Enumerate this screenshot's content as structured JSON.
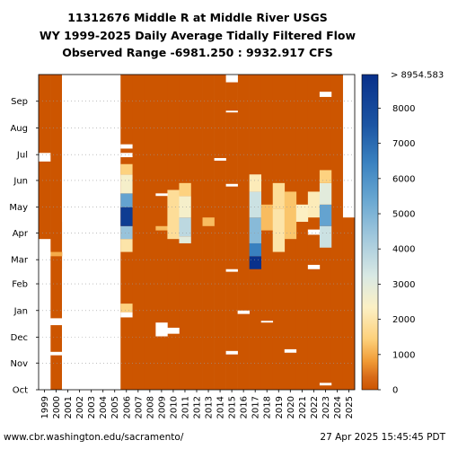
{
  "chart_data": {
    "type": "heatmap",
    "title_lines": [
      "11312676 Middle R at Middle River USGS",
      "WY 1999-2025 Daily Average Tidally Filtered Flow",
      "Observed Range -6981.250 : 9932.917 CFS"
    ],
    "x_categories": [
      "1999",
      "2000",
      "2001",
      "2002",
      "2003",
      "2004",
      "2005",
      "2006",
      "2007",
      "2008",
      "2009",
      "2010",
      "2011",
      "2012",
      "2013",
      "2014",
      "2015",
      "2016",
      "2017",
      "2018",
      "2019",
      "2020",
      "2021",
      "2022",
      "2023",
      "2024",
      "2025"
    ],
    "y_months": [
      "Oct",
      "Nov",
      "Dec",
      "Jan",
      "Feb",
      "Mar",
      "Apr",
      "May",
      "Jun",
      "Jul",
      "Aug",
      "Sep"
    ],
    "colorbar": {
      "range": [
        0,
        8954.583
      ],
      "ticks": [
        0,
        1000,
        2000,
        3000,
        4000,
        5000,
        6000,
        7000,
        8000
      ],
      "top_label": "> 8954.583"
    },
    "base_value_cfs": 0,
    "missing_columns": [
      "2001",
      "2002",
      "2003",
      "2004",
      "2005"
    ],
    "missing_ranges": [
      {
        "wy": "1999",
        "from_day": 0,
        "to_day": 175
      },
      {
        "wy": "1999",
        "from_day": 265,
        "to_day": 275
      },
      {
        "wy": "2000",
        "from_day": 40,
        "to_day": 44
      },
      {
        "wy": "2000",
        "from_day": 75,
        "to_day": 83
      },
      {
        "wy": "2001",
        "from_day": 0,
        "to_day": 140
      },
      {
        "wy": "2001",
        "from_day": 195,
        "to_day": 366
      },
      {
        "wy": "2006",
        "from_day": 84,
        "to_day": 90
      },
      {
        "wy": "2006",
        "from_day": 270,
        "to_day": 275
      },
      {
        "wy": "2006",
        "from_day": 280,
        "to_day": 285
      },
      {
        "wy": "2009",
        "from_day": 62,
        "to_day": 78
      },
      {
        "wy": "2009",
        "from_day": 225,
        "to_day": 228
      },
      {
        "wy": "2010",
        "from_day": 65,
        "to_day": 72
      },
      {
        "wy": "2014",
        "from_day": 266,
        "to_day": 269
      },
      {
        "wy": "2015",
        "from_day": 41,
        "to_day": 45
      },
      {
        "wy": "2015",
        "from_day": 137,
        "to_day": 140
      },
      {
        "wy": "2015",
        "from_day": 236,
        "to_day": 239
      },
      {
        "wy": "2015",
        "from_day": 322,
        "to_day": 324
      },
      {
        "wy": "2015",
        "from_day": 357,
        "to_day": 366
      },
      {
        "wy": "2016",
        "from_day": 88,
        "to_day": 92
      },
      {
        "wy": "2018",
        "from_day": 78,
        "to_day": 80
      },
      {
        "wy": "2020",
        "from_day": 43,
        "to_day": 47
      },
      {
        "wy": "2022",
        "from_day": 140,
        "to_day": 145
      },
      {
        "wy": "2022",
        "from_day": 180,
        "to_day": 186
      },
      {
        "wy": "2023",
        "from_day": 5,
        "to_day": 8
      },
      {
        "wy": "2023",
        "from_day": 340,
        "to_day": 346
      },
      {
        "wy": "2025",
        "from_day": 200,
        "to_day": 366
      }
    ],
    "flow_events": [
      {
        "wy": "2000",
        "from_day": 155,
        "to_day": 160,
        "value": 1000
      },
      {
        "wy": "2006",
        "from_day": 90,
        "to_day": 100,
        "value": 1500
      },
      {
        "wy": "2006",
        "from_day": 160,
        "to_day": 175,
        "value": 2000
      },
      {
        "wy": "2006",
        "from_day": 175,
        "to_day": 190,
        "value": 4500
      },
      {
        "wy": "2006",
        "from_day": 190,
        "to_day": 212,
        "value": 8500
      },
      {
        "wy": "2006",
        "from_day": 212,
        "to_day": 228,
        "value": 5500
      },
      {
        "wy": "2006",
        "from_day": 228,
        "to_day": 250,
        "value": 2500
      },
      {
        "wy": "2006",
        "from_day": 250,
        "to_day": 262,
        "value": 1500
      },
      {
        "wy": "2009",
        "from_day": 185,
        "to_day": 190,
        "value": 1200
      },
      {
        "wy": "2010",
        "from_day": 175,
        "to_day": 232,
        "value": 1800
      },
      {
        "wy": "2011",
        "from_day": 170,
        "to_day": 178,
        "value": 3000
      },
      {
        "wy": "2011",
        "from_day": 178,
        "to_day": 200,
        "value": 3800
      },
      {
        "wy": "2011",
        "from_day": 200,
        "to_day": 225,
        "value": 2500
      },
      {
        "wy": "2011",
        "from_day": 225,
        "to_day": 240,
        "value": 1500
      },
      {
        "wy": "2013",
        "from_day": 190,
        "to_day": 200,
        "value": 1200
      },
      {
        "wy": "2017",
        "from_day": 140,
        "to_day": 155,
        "value": 8900
      },
      {
        "wy": "2017",
        "from_day": 155,
        "to_day": 170,
        "value": 6500
      },
      {
        "wy": "2017",
        "from_day": 170,
        "to_day": 200,
        "value": 4800
      },
      {
        "wy": "2017",
        "from_day": 200,
        "to_day": 230,
        "value": 3500
      },
      {
        "wy": "2017",
        "from_day": 230,
        "to_day": 250,
        "value": 2200
      },
      {
        "wy": "2018",
        "from_day": 185,
        "to_day": 215,
        "value": 1200
      },
      {
        "wy": "2019",
        "from_day": 160,
        "to_day": 210,
        "value": 2000
      },
      {
        "wy": "2019",
        "from_day": 210,
        "to_day": 240,
        "value": 1800
      },
      {
        "wy": "2020",
        "from_day": 175,
        "to_day": 230,
        "value": 1300
      },
      {
        "wy": "2021",
        "from_day": 195,
        "to_day": 215,
        "value": 2300
      },
      {
        "wy": "2022",
        "from_day": 200,
        "to_day": 230,
        "value": 2200
      },
      {
        "wy": "2023",
        "from_day": 165,
        "to_day": 190,
        "value": 3500
      },
      {
        "wy": "2023",
        "from_day": 190,
        "to_day": 215,
        "value": 5500
      },
      {
        "wy": "2023",
        "from_day": 215,
        "to_day": 240,
        "value": 3000
      },
      {
        "wy": "2023",
        "from_day": 240,
        "to_day": 255,
        "value": 1500
      }
    ]
  },
  "footer": {
    "url": "www.cbr.washington.edu/sacramento/",
    "timestamp": "27 Apr 2025 15:45:45 PDT"
  }
}
